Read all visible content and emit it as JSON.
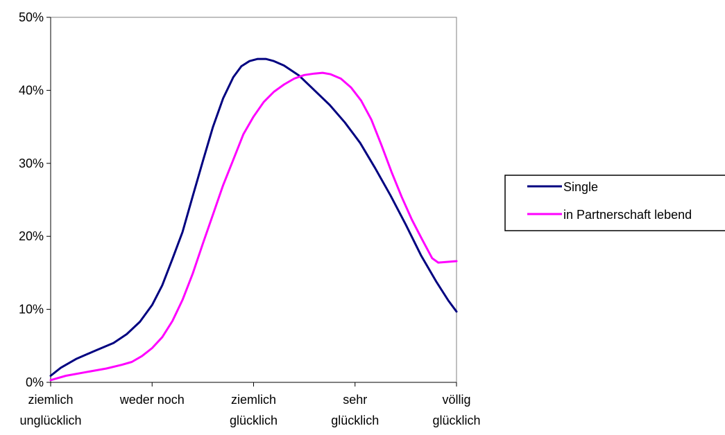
{
  "chart_data": {
    "type": "line",
    "title": "",
    "xlabel": "",
    "ylabel": "",
    "categories": [
      [
        "ziemlich",
        "unglücklich"
      ],
      [
        "weder noch"
      ],
      [
        "ziemlich",
        "glücklich"
      ],
      [
        "sehr",
        "glücklich"
      ],
      [
        "völlig",
        "glücklich"
      ]
    ],
    "ylim": [
      0,
      50
    ],
    "yticks": [
      0,
      10,
      20,
      30,
      40,
      50
    ],
    "ytick_labels": [
      "0%",
      "10%",
      "20%",
      "30%",
      "40%",
      "50%"
    ],
    "grid": false,
    "legend_position": "right",
    "series": [
      {
        "name": "Single",
        "color": "#000080",
        "points": [
          [
            0.0,
            0.9
          ],
          [
            0.1,
            2.0
          ],
          [
            0.25,
            3.2
          ],
          [
            0.45,
            4.4
          ],
          [
            0.62,
            5.4
          ],
          [
            0.75,
            6.6
          ],
          [
            0.88,
            8.3
          ],
          [
            1.0,
            10.6
          ],
          [
            1.1,
            13.3
          ],
          [
            1.2,
            16.9
          ],
          [
            1.3,
            20.6
          ],
          [
            1.4,
            25.5
          ],
          [
            1.5,
            30.3
          ],
          [
            1.6,
            35.0
          ],
          [
            1.7,
            38.9
          ],
          [
            1.8,
            41.8
          ],
          [
            1.88,
            43.3
          ],
          [
            1.96,
            44.0
          ],
          [
            2.04,
            44.3
          ],
          [
            2.12,
            44.3
          ],
          [
            2.2,
            44.0
          ],
          [
            2.3,
            43.4
          ],
          [
            2.45,
            42.0
          ],
          [
            2.6,
            40.0
          ],
          [
            2.75,
            38.0
          ],
          [
            2.9,
            35.6
          ],
          [
            3.05,
            32.8
          ],
          [
            3.2,
            29.3
          ],
          [
            3.35,
            25.6
          ],
          [
            3.5,
            21.6
          ],
          [
            3.65,
            17.4
          ],
          [
            3.8,
            13.8
          ],
          [
            3.92,
            11.2
          ],
          [
            4.0,
            9.7
          ]
        ]
      },
      {
        "name": "in Partnerschaft lebend",
        "color": "#ff00ff",
        "points": [
          [
            0.0,
            0.3
          ],
          [
            0.15,
            0.9
          ],
          [
            0.35,
            1.4
          ],
          [
            0.55,
            1.9
          ],
          [
            0.7,
            2.4
          ],
          [
            0.8,
            2.8
          ],
          [
            0.9,
            3.6
          ],
          [
            1.0,
            4.7
          ],
          [
            1.1,
            6.2
          ],
          [
            1.2,
            8.4
          ],
          [
            1.3,
            11.3
          ],
          [
            1.4,
            14.9
          ],
          [
            1.5,
            19.0
          ],
          [
            1.6,
            23.0
          ],
          [
            1.7,
            27.0
          ],
          [
            1.8,
            30.5
          ],
          [
            1.9,
            34.0
          ],
          [
            2.0,
            36.4
          ],
          [
            2.1,
            38.4
          ],
          [
            2.2,
            39.8
          ],
          [
            2.3,
            40.8
          ],
          [
            2.4,
            41.6
          ],
          [
            2.5,
            42.1
          ],
          [
            2.6,
            42.3
          ],
          [
            2.68,
            42.4
          ],
          [
            2.76,
            42.2
          ],
          [
            2.86,
            41.6
          ],
          [
            2.96,
            40.4
          ],
          [
            3.06,
            38.6
          ],
          [
            3.16,
            36.0
          ],
          [
            3.26,
            32.5
          ],
          [
            3.36,
            28.8
          ],
          [
            3.46,
            25.4
          ],
          [
            3.56,
            22.3
          ],
          [
            3.66,
            19.6
          ],
          [
            3.76,
            17.0
          ],
          [
            3.82,
            16.4
          ],
          [
            4.0,
            16.6
          ]
        ]
      }
    ]
  }
}
